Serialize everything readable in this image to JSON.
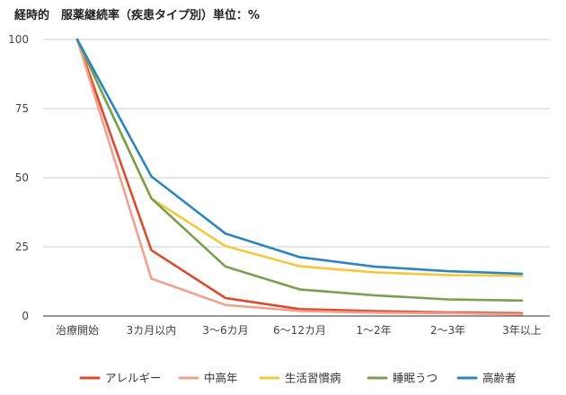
{
  "chart_data": {
    "type": "line",
    "title": "経時的　服薬継続率（疾患タイプ別）単位：%",
    "xlabel": "",
    "ylabel": "",
    "categories": [
      "治療開始",
      "3カ月以内",
      "3～6カ月",
      "6～12カ月",
      "1～2年",
      "2～3年",
      "3年以上"
    ],
    "ylim": [
      0,
      100
    ],
    "yticks": [
      0,
      25,
      50,
      75,
      100
    ],
    "grid": true,
    "legend_position": "bottom",
    "series": [
      {
        "name": "アレルギー",
        "color": "#dc4a2b",
        "values": [
          100,
          23.8,
          6.5,
          2.5,
          1.8,
          1.3,
          1.0
        ]
      },
      {
        "name": "中高年",
        "color": "#f2a08d",
        "values": [
          100,
          13.5,
          4.0,
          1.8,
          1.2,
          1.0,
          0.6
        ]
      },
      {
        "name": "生活習慣病",
        "color": "#f5c73a",
        "values": [
          100,
          42.5,
          25.3,
          18.0,
          15.8,
          14.8,
          14.5
        ]
      },
      {
        "name": "睡眠うつ",
        "color": "#79a04e",
        "values": [
          100,
          42.5,
          17.9,
          9.6,
          7.5,
          6.0,
          5.6
        ]
      },
      {
        "name": "高齢者",
        "color": "#2d86bd",
        "values": [
          100,
          50.5,
          29.8,
          21.3,
          17.9,
          16.2,
          15.3
        ]
      }
    ]
  }
}
